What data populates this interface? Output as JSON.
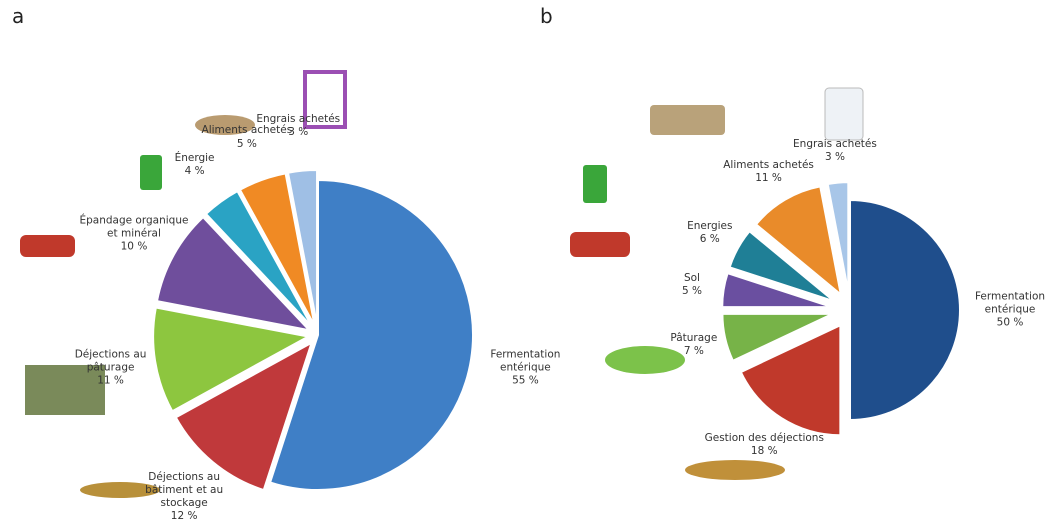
{
  "chart_data": [
    {
      "type": "pie",
      "title": "a",
      "categories": [
        "Fermentation entérique",
        "Déjections au bâtiment et au stockage",
        "Déjections au pâturage",
        "Épandage organique et minéral",
        "Énergie",
        "Aliments achetés",
        "Engrais achetés"
      ],
      "values": [
        55,
        12,
        11,
        10,
        4,
        5,
        3
      ],
      "value_labels": [
        "55 %",
        "12 %",
        "11 %",
        "10 %",
        "4 %",
        "5 %",
        "3 %"
      ],
      "colors": [
        "#3f7fc6",
        "#c0393b",
        "#8dc63f",
        "#6f4e9c",
        "#2aa3c4",
        "#f08a24",
        "#9fbfe5"
      ]
    },
    {
      "type": "pie",
      "title": "b",
      "categories": [
        "Fermentation entérique",
        "Gestion des déjections",
        "Pâturage",
        "Sol",
        "Energies",
        "Aliments achetés",
        "Engrais achetés"
      ],
      "values": [
        50,
        18,
        7,
        5,
        6,
        11,
        3
      ],
      "value_labels": [
        "50 %",
        "18 %",
        "7 %",
        "5 %",
        "6 %",
        "11 %",
        "3 %"
      ],
      "colors": [
        "#1f4e8c",
        "#c0392b",
        "#77b348",
        "#6a4fa0",
        "#1f7f96",
        "#e98b2a",
        "#a8c6e8"
      ]
    }
  ]
}
